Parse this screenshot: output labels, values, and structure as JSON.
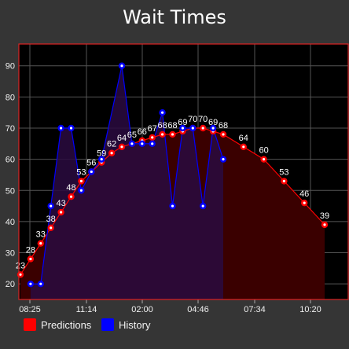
{
  "title": "Wait Times",
  "chart_data": {
    "type": "line",
    "title": "Wait Times",
    "ylim": [
      15,
      97
    ],
    "yticks": [
      20,
      30,
      40,
      50,
      60,
      70,
      80,
      90
    ],
    "xticks": [
      "08:25",
      "11:14",
      "02:00",
      "04:46",
      "07:34",
      "10:20"
    ],
    "grid": true,
    "legend_position": "bottom-left",
    "series": [
      {
        "name": "Predictions",
        "color": "#ff0000",
        "fill": "#3a0000",
        "labels": true,
        "x": [
          0,
          0.5,
          1,
          1.5,
          2,
          2.5,
          3,
          3.5,
          4,
          4.5,
          5,
          5.5,
          6,
          6.5,
          7,
          7.5,
          8,
          8.5,
          9,
          9.5,
          10,
          11,
          12,
          13,
          14,
          15
        ],
        "values": [
          23,
          28,
          33,
          38,
          43,
          48,
          53,
          56,
          59,
          62,
          64,
          65,
          66,
          67,
          68,
          68,
          69,
          70,
          70,
          69,
          68,
          64,
          60,
          53,
          46,
          39
        ]
      },
      {
        "name": "History",
        "color": "#0000ff",
        "fill": "#2a0a40",
        "labels": false,
        "x": [
          0.5,
          1,
          1.5,
          2,
          2.5,
          3,
          3.5,
          4,
          5,
          5.5,
          6,
          6.5,
          7,
          7.5,
          8,
          8.5,
          9,
          9.5,
          10
        ],
        "values": [
          20,
          20,
          45,
          70,
          70,
          50,
          56,
          60,
          90,
          65,
          65,
          65,
          75,
          45,
          70,
          70,
          45,
          70,
          60
        ]
      }
    ]
  }
}
